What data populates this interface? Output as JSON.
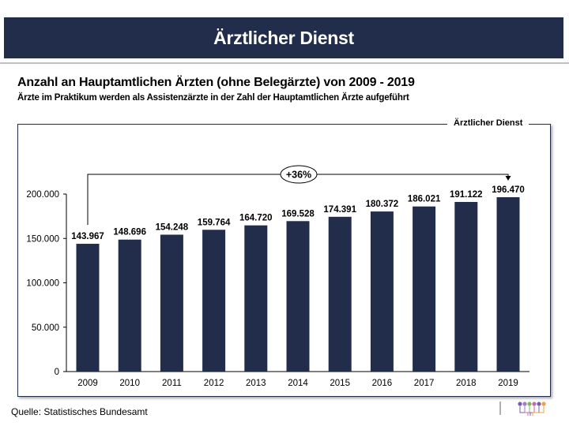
{
  "header": {
    "title": "Ärztlicher Dienst"
  },
  "title": "Anzahl an Hauptamtlichen Ärzten (ohne Belegärzte) von 2009 - 2019",
  "subtitle": "Ärzte im Praktikum werden als Assistenzärzte in der Zahl der Hauptamtlichen Ärzte aufgeführt",
  "box_label": "Ärztlicher Dienst",
  "source": "Quelle: Statistisches Bundesamt",
  "colors": {
    "header": "#212d4a",
    "bar": "#212d4a",
    "separator": "#c0c0c0"
  },
  "logo": {
    "icon": "network-logo",
    "dot_colors": [
      "#7b5ea7",
      "#a67cc2",
      "#7dbb5a",
      "#c06ab0",
      "#7b5ea7",
      "#f0a040"
    ]
  },
  "chart_data": {
    "type": "bar",
    "title": "Anzahl an Hauptamtlichen Ärzten (ohne Belegärzte) von 2009 - 2019",
    "xlabel": "",
    "ylabel": "",
    "categories": [
      "2009",
      "2010",
      "2011",
      "2012",
      "2013",
      "2014",
      "2015",
      "2016",
      "2017",
      "2018",
      "2019"
    ],
    "values": [
      143967,
      148696,
      154248,
      159764,
      164720,
      169528,
      174391,
      180372,
      186021,
      191122,
      196470
    ],
    "value_labels": [
      "143.967",
      "148.696",
      "154.248",
      "159.764",
      "164.720",
      "169.528",
      "174.391",
      "180.372",
      "186.021",
      "191.122",
      "196.470"
    ],
    "ylim": [
      0,
      200000
    ],
    "yticks": [
      0,
      50000,
      100000,
      150000,
      200000
    ],
    "ytick_labels": [
      "0",
      "50.000",
      "100.000",
      "150.000",
      "200.000"
    ],
    "grid": false,
    "legend": "none",
    "annotation": {
      "text": "+36%",
      "from": "2009",
      "to": "2019"
    }
  }
}
